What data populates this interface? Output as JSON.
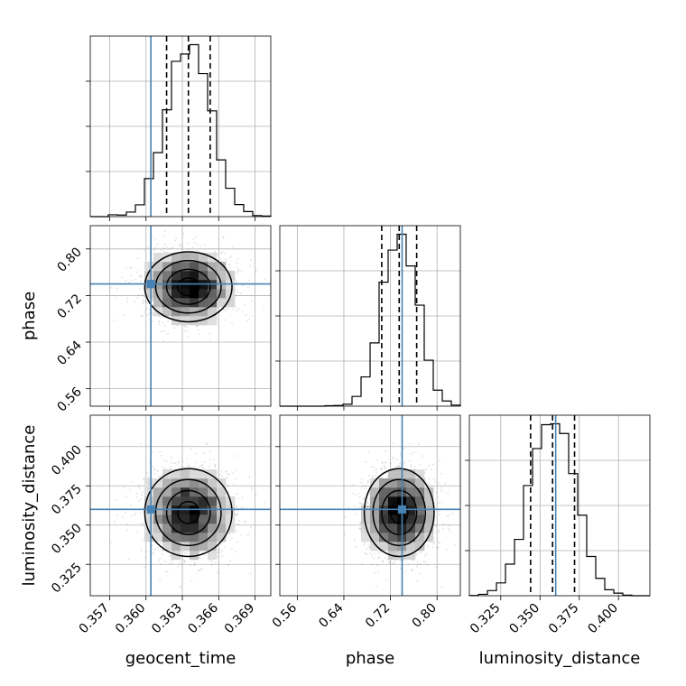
{
  "chart_data": {
    "type": "corner",
    "parameters": [
      {
        "key": "geocent_time",
        "label": "geocent_time",
        "range": [
          0.3554,
          0.3703
        ],
        "ticks": [
          0.357,
          0.36,
          0.363,
          0.366,
          0.369
        ],
        "tick_labels": [
          "0.357",
          "0.360",
          "0.363",
          "0.366",
          "0.369"
        ],
        "mean": 0.3635,
        "std": 0.0018,
        "quantiles": [
          0.3617,
          0.3635,
          0.3653
        ],
        "truth": 0.3604
      },
      {
        "key": "phase",
        "label": "phase",
        "range": [
          0.53,
          0.84
        ],
        "ticks": [
          0.56,
          0.64,
          0.72,
          0.8
        ],
        "tick_labels": [
          "0.56",
          "0.64",
          "0.72",
          "0.80"
        ],
        "mean": 0.735,
        "std": 0.03,
        "quantiles": [
          0.705,
          0.735,
          0.765
        ],
        "truth": 0.74
      },
      {
        "key": "luminosity_distance",
        "label": "luminosity_distance",
        "range": [
          0.305,
          0.42
        ],
        "ticks": [
          0.325,
          0.35,
          0.375,
          0.4
        ],
        "tick_labels": [
          "0.325",
          "0.350",
          "0.375",
          "0.400"
        ],
        "mean": 0.358,
        "std": 0.014,
        "quantiles": [
          0.344,
          0.358,
          0.372
        ],
        "truth": 0.36
      }
    ],
    "grid": true,
    "truth_color": "#4682b4"
  }
}
